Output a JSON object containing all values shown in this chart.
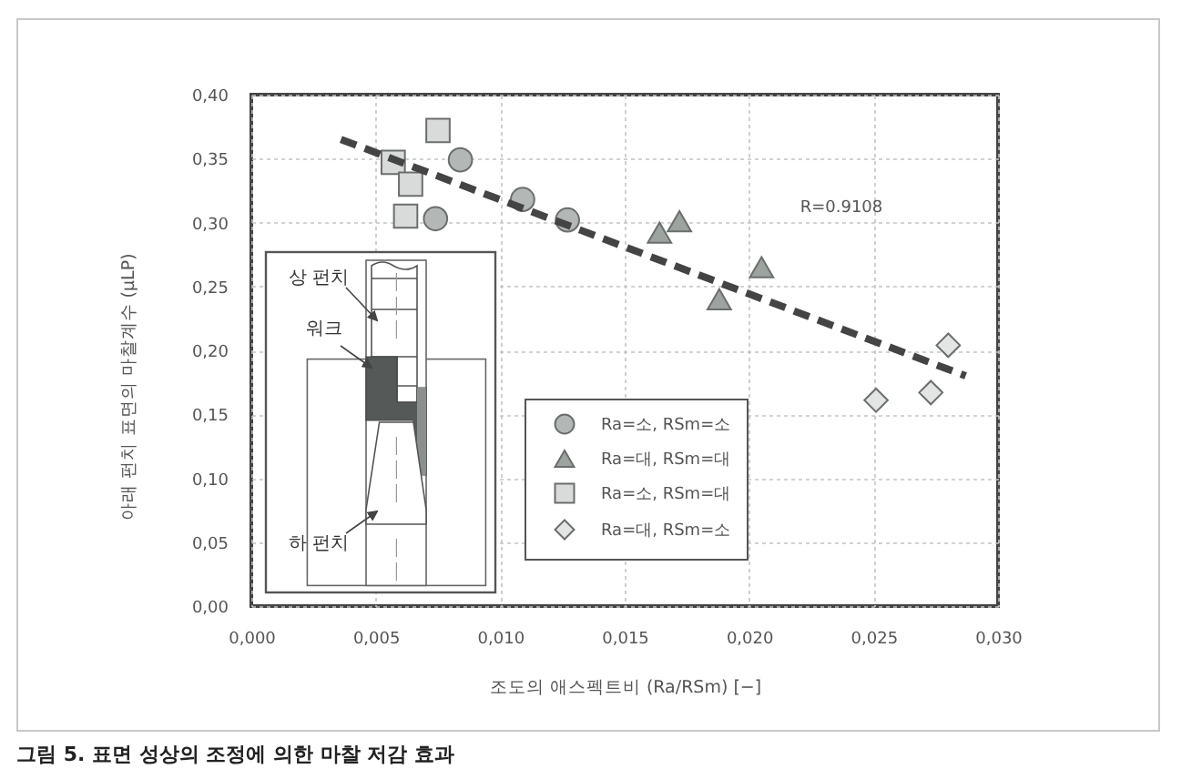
{
  "chart_data": {
    "type": "scatter",
    "title": "그림 5. 표면 성상의 조정에 의한 마찰 저감 효과",
    "xlabel": "조도의 애스펙트비 (Ra/RSm) [−]",
    "ylabel": "아래 펀치 표면의 마찰계수 (μLP)",
    "annotations": [
      "R=0.9108",
      "상 펀치",
      "워크",
      "하 펀치"
    ],
    "xlim": [
      0,
      0.03
    ],
    "xticks": [
      {
        "value": 0,
        "label": "0,000"
      },
      {
        "value": 0.005,
        "label": "0,005"
      },
      {
        "value": 0.01,
        "label": "0,010"
      },
      {
        "value": 0.015,
        "label": "0,015"
      },
      {
        "value": 0.02,
        "label": "0,020"
      },
      {
        "value": 0.025,
        "label": "0,025"
      },
      {
        "value": 0.03,
        "label": "0,030"
      }
    ],
    "ylim": [
      0,
      0.4
    ],
    "yticks": [
      {
        "value": 0,
        "label": "0,00"
      },
      {
        "value": 0.05,
        "label": "0,05"
      },
      {
        "value": 0.1,
        "label": "0,10"
      },
      {
        "value": 0.15,
        "label": "0,15"
      },
      {
        "value": 0.2,
        "label": "0,20"
      },
      {
        "value": 0.25,
        "label": "0,25"
      },
      {
        "value": 0.3,
        "label": "0,30"
      },
      {
        "value": 0.35,
        "label": "0,35"
      },
      {
        "value": 0.4,
        "label": "0,40"
      }
    ],
    "grid": true,
    "legend": "bottom right",
    "series": [
      {
        "name": "Ra=소, RSm=소",
        "marker": "circle",
        "color": "#b3b7b5",
        "x": [
          0.0074,
          0.0084,
          0.0109,
          0.0127
        ],
        "values": [
          0.303,
          0.349,
          0.318,
          0.302
        ]
      },
      {
        "name": "Ra=대, RSm=대",
        "marker": "triangle",
        "color": "#9da39f",
        "x": [
          0.0164,
          0.0172,
          0.0188,
          0.0205
        ],
        "values": [
          0.292,
          0.301,
          0.24,
          0.265
        ]
      },
      {
        "name": "Ra=소, RSm=대",
        "marker": "square",
        "color": "#d8dbd9",
        "x": [
          0.0057,
          0.0062,
          0.0064,
          0.0075
        ],
        "values": [
          0.347,
          0.305,
          0.33,
          0.372
        ]
      },
      {
        "name": "Ra=대, RSm=소",
        "marker": "diamond",
        "color": "#e2e5e3",
        "x": [
          0.0251,
          0.0273,
          0.028
        ],
        "values": [
          0.161,
          0.167,
          0.204
        ]
      },
      {
        "type": "line",
        "line_style": "dashed",
        "color": "#444444",
        "x": [
          0.0036,
          0.0287
        ],
        "values": [
          0.365,
          0.18
        ]
      }
    ]
  }
}
